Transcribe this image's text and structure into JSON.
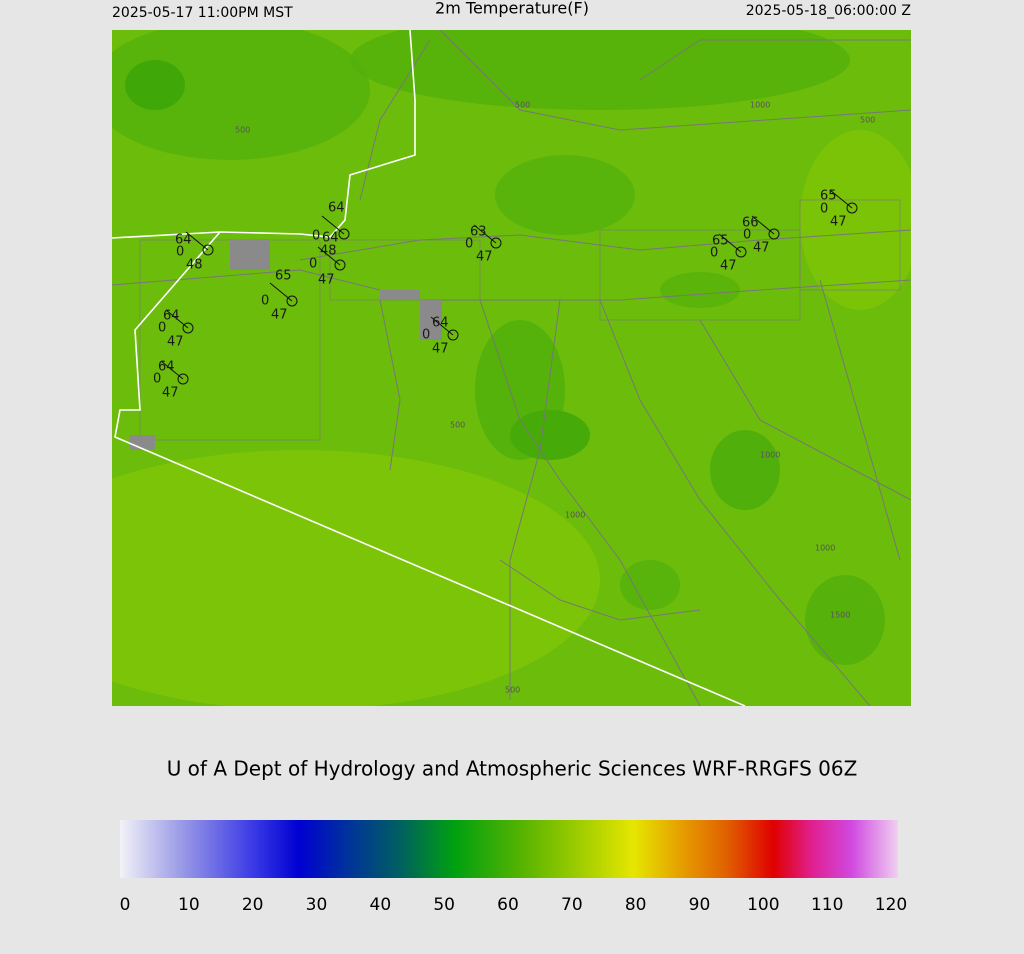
{
  "header": {
    "left": "2025-05-17 11:00PM MST",
    "title": "2m Temperature(F)",
    "right": "2025-05-18_06:00:00 Z"
  },
  "stations": [
    {
      "temp": 64,
      "wind": 0,
      "dewpoint": 48
    },
    {
      "temp": 64,
      "wind": 0,
      "dewpoint": 48
    },
    {
      "temp": 64,
      "wind": 0,
      "dewpoint": 47
    },
    {
      "temp": 65,
      "wind": 0,
      "dewpoint": 47
    },
    {
      "temp": 63,
      "wind": 0,
      "dewpoint": 47
    },
    {
      "temp": 64,
      "wind": 0,
      "dewpoint": 47
    },
    {
      "temp": 64,
      "wind": 0,
      "dewpoint": 47
    },
    {
      "temp": 64,
      "wind": 0,
      "dewpoint": 47
    },
    {
      "temp": 65,
      "wind": 0,
      "dewpoint": 47
    },
    {
      "temp": 66,
      "wind": 0,
      "dewpoint": 47
    },
    {
      "temp": 65,
      "wind": 0,
      "dewpoint": 47
    }
  ],
  "contour_labels": [
    "500",
    "500",
    "1000",
    "500",
    "500",
    "1000",
    "1000",
    "1000",
    "1500",
    "500"
  ],
  "footer": "U of A Dept of Hydrology and Atmospheric Sciences WRF-RRGFS 06Z",
  "colorbar": {
    "ticks": [
      0,
      10,
      20,
      30,
      40,
      50,
      60,
      70,
      80,
      90,
      100,
      110,
      120
    ]
  }
}
